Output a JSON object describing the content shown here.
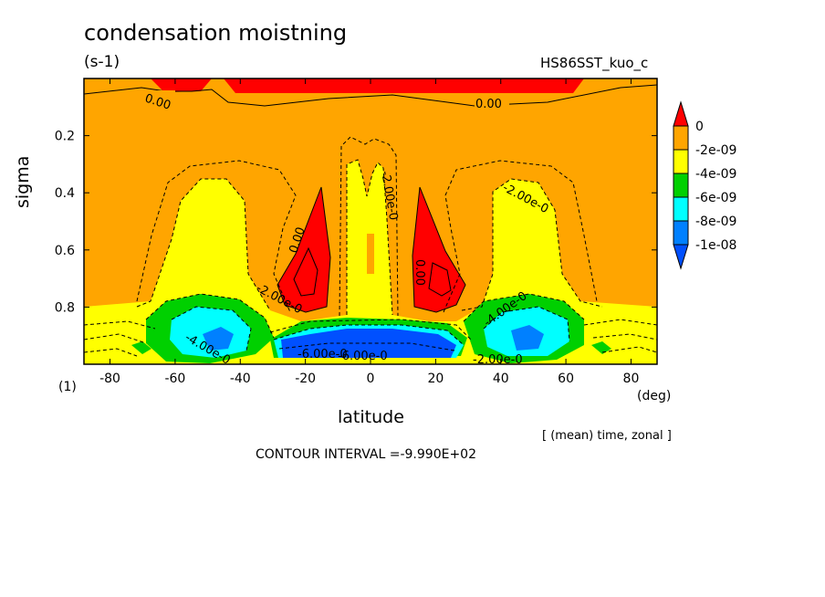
{
  "chart_data": {
    "type": "heatmap",
    "title": "condensation moistning",
    "units": "(s-1)",
    "run_name": "HS86SST_kuo_c",
    "xlabel": "latitude",
    "x_unit": "(deg)",
    "ylabel": "sigma",
    "z_unit": "(1)",
    "xlim": [
      -88,
      88
    ],
    "ylim": [
      1.0,
      0.0
    ],
    "x_ticks": [
      "-80",
      "-60",
      "-40",
      "-20",
      "0",
      "20",
      "40",
      "60",
      "80"
    ],
    "y_ticks": [
      "0.2",
      "0.4",
      "0.6",
      "0.8"
    ],
    "legend": {
      "labels": [
        "0",
        "-2e-09",
        "-4e-09",
        "-6e-09",
        "-8e-09",
        "-1e-08"
      ],
      "colors": [
        "#ff0000",
        "#ffa500",
        "#ffff00",
        "#00d000",
        "#00ffff",
        "#0080ff",
        "#0050ff"
      ],
      "placement": "right"
    },
    "contour_labels": [
      "0.00",
      "0.00",
      "0.00",
      "0.00",
      "-2.00e-0",
      "-2.00e-0",
      "-2.00e-0",
      "-4.00e-0",
      "-4.00e-0",
      "-6.00e-0",
      "-6.00e-0",
      "-2.00e-0"
    ],
    "note": "[ (mean) time, zonal ]",
    "contour_interval": "CONTOUR INTERVAL =-9.990E+02"
  }
}
